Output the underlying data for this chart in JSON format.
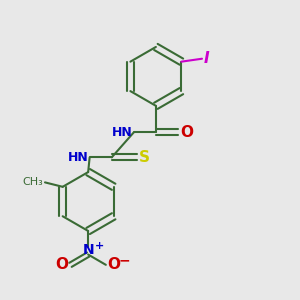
{
  "background_color": "#e8e8e8",
  "bond_color": "#3a6b35",
  "bond_width": 1.5,
  "nitrogen_color": "#0000cc",
  "oxygen_color": "#cc0000",
  "sulfur_color": "#cccc00",
  "iodine_color": "#cc00cc",
  "figsize": [
    3.0,
    3.0
  ],
  "dpi": 100,
  "xlim": [
    0,
    10
  ],
  "ylim": [
    0,
    10
  ]
}
